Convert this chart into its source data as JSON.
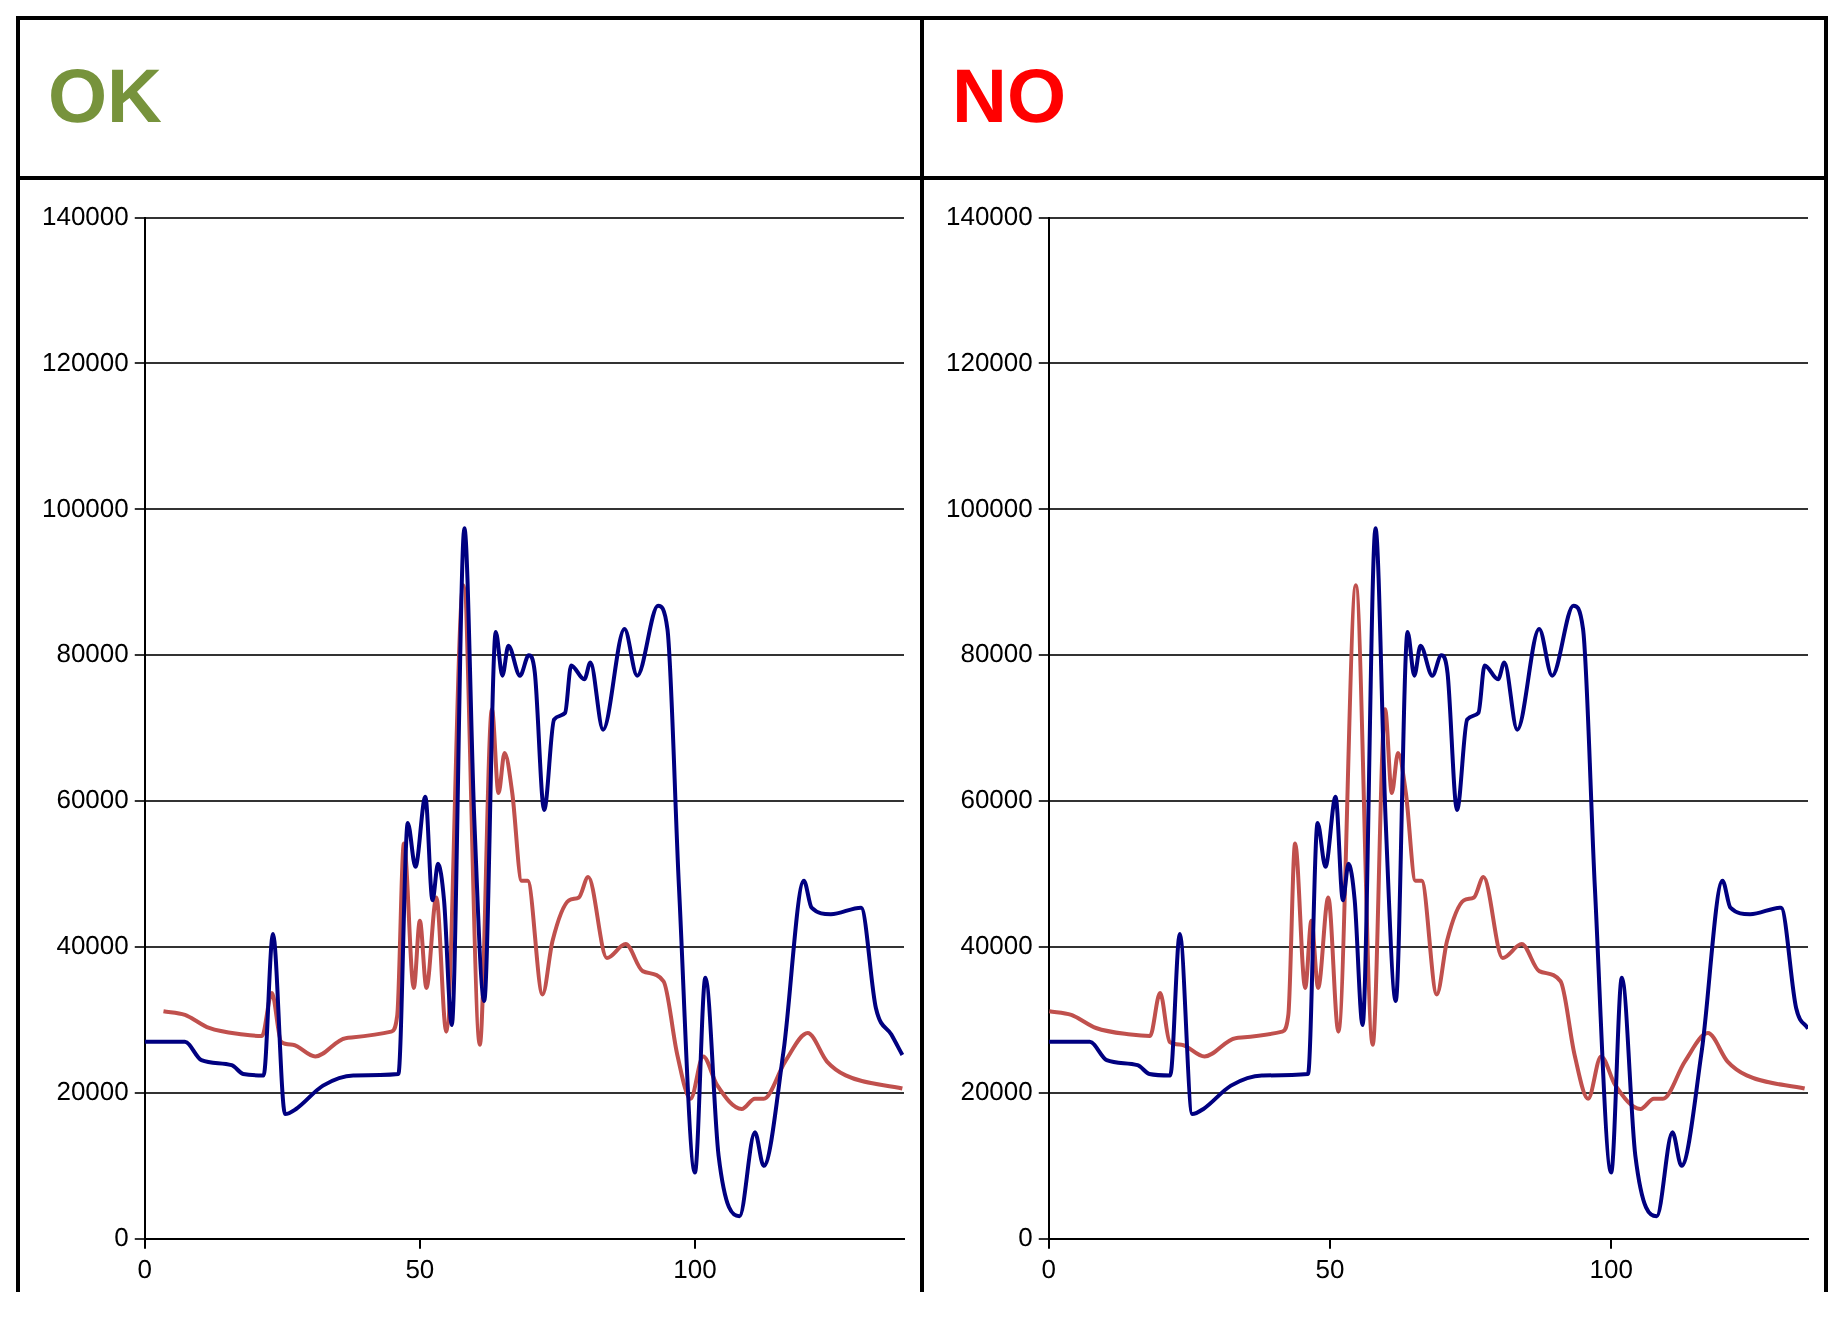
{
  "chart_data": [
    {
      "type": "line",
      "title": "OK",
      "xlim": [
        0,
        138
      ],
      "xticks": [
        0,
        50,
        100
      ],
      "ylim": [
        0,
        140000
      ],
      "yticks": [
        0,
        20000,
        40000,
        60000,
        80000,
        100000,
        120000,
        140000
      ],
      "grid": "y",
      "marker": "none",
      "legend": false,
      "series": [
        {
          "color": "#000080",
          "x": [
            0,
            7.3,
            10.3,
            15.8,
            17.9,
            21.6,
            23.3,
            25.5,
            27.5,
            32.4,
            37.9,
            46.1,
            47.8,
            49.2,
            51,
            52.3,
            53.3,
            54.4,
            55.8,
            58.1,
            59.9,
            61.7,
            63.8,
            65,
            66.1,
            68.2,
            69.8,
            70.9,
            72.6,
            74.4,
            76.4,
            77.5,
            79.9,
            81,
            83.3,
            87.2,
            89.5,
            93.3,
            95,
            97.1,
            100,
            101.9,
            104.3,
            108.1,
            110.9,
            112.5,
            116.1,
            119.8,
            121.2,
            124.7,
            130.2,
            132.9,
            135.7,
            137.7
          ],
          "values": [
            27000,
            27000,
            24500,
            23800,
            22600,
            22400,
            41800,
            17100,
            17800,
            21000,
            22400,
            22600,
            57000,
            51000,
            60600,
            46400,
            51400,
            46400,
            29300,
            97400,
            57400,
            32600,
            83200,
            77200,
            81300,
            77200,
            80000,
            77600,
            58800,
            71200,
            72100,
            78600,
            76700,
            79000,
            69800,
            83600,
            77200,
            86800,
            83600,
            48200,
            9100,
            35800,
            11400,
            3100,
            14600,
            10000,
            25700,
            49100,
            45400,
            44500,
            45400,
            31600,
            28000,
            25200
          ]
        },
        {
          "color": "#c0504d",
          "x": [
            3.4,
            7.3,
            11.7,
            17.9,
            21.3,
            23.1,
            24.8,
            26.9,
            31,
            36.5,
            44.8,
            45.9,
            47.1,
            48.9,
            50,
            51.2,
            53,
            54.8,
            57.9,
            60.9,
            63.1,
            64.3,
            65.4,
            66.8,
            68.5,
            69.6,
            72.3,
            74.1,
            77.1,
            78.9,
            80.6,
            84,
            87.4,
            90.5,
            94.3,
            96.8,
            99.2,
            101.5,
            104,
            108.5,
            110.9,
            112.5,
            116.4,
            120.5,
            124,
            127.4,
            137.7
          ],
          "values": [
            31200,
            30700,
            28900,
            28000,
            27800,
            33700,
            27000,
            26600,
            25000,
            27500,
            28400,
            30700,
            54200,
            34400,
            43600,
            34400,
            46800,
            28400,
            89600,
            26600,
            72600,
            61100,
            66600,
            61100,
            49100,
            49100,
            33500,
            40800,
            46400,
            46800,
            49600,
            38500,
            40400,
            36700,
            35300,
            25200,
            19200,
            25000,
            21100,
            17800,
            19200,
            19200,
            24300,
            28200,
            24300,
            22400,
            20600
          ]
        }
      ]
    },
    {
      "type": "line",
      "title": "NO",
      "xlim": [
        0,
        135
      ],
      "xticks": [
        0,
        50,
        100
      ],
      "ylim": [
        0,
        140000
      ],
      "yticks": [
        0,
        20000,
        40000,
        60000,
        80000,
        100000,
        120000,
        140000
      ],
      "grid": "y",
      "marker": "none",
      "legend": false,
      "series": [
        {
          "color": "#000080",
          "x": [
            0,
            7.3,
            10.3,
            15.8,
            17.9,
            21.6,
            23.3,
            25.5,
            27.5,
            32.4,
            37.9,
            46.1,
            47.8,
            49.2,
            51,
            52.3,
            53.3,
            54.4,
            55.8,
            58.1,
            59.9,
            61.7,
            63.8,
            65,
            66.1,
            68.2,
            69.8,
            70.9,
            72.6,
            74.4,
            76.4,
            77.5,
            79.9,
            81,
            83.3,
            87.2,
            89.5,
            93.3,
            95,
            97.1,
            100,
            101.9,
            104.3,
            108.1,
            110.9,
            112.5,
            116.1,
            119.8,
            121.2,
            124.7,
            130.2,
            132.9,
            135
          ],
          "values": [
            27000,
            27000,
            24500,
            23800,
            22600,
            22400,
            41800,
            17100,
            17800,
            21000,
            22400,
            22600,
            57000,
            51000,
            60600,
            46400,
            51400,
            46400,
            29300,
            97400,
            57400,
            32600,
            83200,
            77200,
            81300,
            77200,
            80000,
            77600,
            58800,
            71200,
            72100,
            78600,
            76700,
            79000,
            69800,
            83600,
            77200,
            86800,
            83600,
            48200,
            9100,
            35800,
            11400,
            3100,
            14600,
            10000,
            25700,
            49100,
            45400,
            44500,
            45400,
            31600,
            28800
          ]
        },
        {
          "color": "#c0504d",
          "x": [
            0.1,
            4,
            8.4,
            14.6,
            18,
            19.8,
            21.5,
            23.6,
            27.7,
            33.2,
            41.5,
            42.6,
            43.8,
            45.6,
            46.7,
            47.9,
            49.7,
            51.5,
            54.6,
            57.6,
            59.8,
            61,
            62.1,
            63.5,
            65.2,
            66.3,
            69,
            70.8,
            73.8,
            75.6,
            77.3,
            80.7,
            84.1,
            87.2,
            91,
            93.5,
            95.9,
            98.2,
            100.7,
            105.2,
            107.6,
            109.2,
            113.1,
            117.2,
            120.7,
            124.1,
            134.4
          ],
          "values": [
            31200,
            30700,
            28900,
            28000,
            27800,
            33700,
            27000,
            26600,
            25000,
            27500,
            28400,
            30700,
            54200,
            34400,
            43600,
            34400,
            46800,
            28400,
            89600,
            26600,
            72600,
            61100,
            66600,
            61100,
            49100,
            49100,
            33500,
            40800,
            46400,
            46800,
            49600,
            38500,
            40400,
            36700,
            35300,
            25200,
            19200,
            25000,
            21100,
            17800,
            19200,
            19200,
            24300,
            28200,
            24300,
            22400,
            20600
          ]
        }
      ]
    }
  ]
}
